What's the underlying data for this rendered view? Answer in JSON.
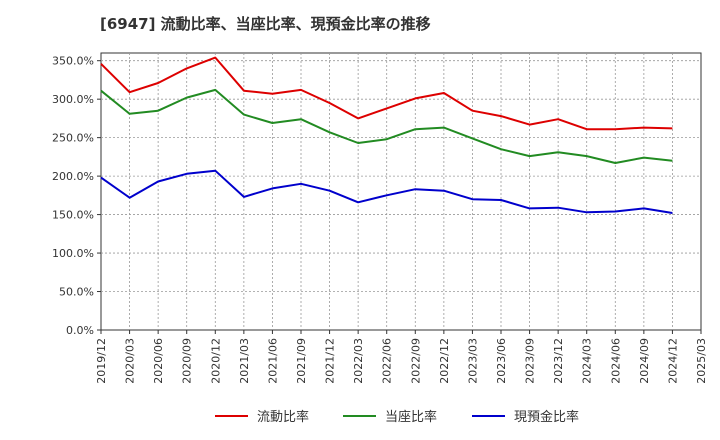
{
  "chart_data": {
    "type": "line",
    "title": "[6947]  流動比率、当座比率、現預金比率の推移",
    "xlabel": "",
    "ylabel": "",
    "ylim": [
      0,
      360
    ],
    "yticks": [
      0,
      50,
      100,
      150,
      200,
      250,
      300,
      350
    ],
    "ytick_labels": [
      "0.0%",
      "50.0%",
      "100.0%",
      "150.0%",
      "200.0%",
      "250.0%",
      "300.0%",
      "350.0%"
    ],
    "grid": true,
    "legend_position": "bottom",
    "x": [
      "2019/12",
      "2020/03",
      "2020/06",
      "2020/09",
      "2020/12",
      "2021/03",
      "2021/06",
      "2021/09",
      "2021/12",
      "2022/03",
      "2022/06",
      "2022/09",
      "2022/12",
      "2023/03",
      "2023/06",
      "2023/09",
      "2023/12",
      "2024/03",
      "2024/06",
      "2024/09",
      "2024/12",
      "2025/03"
    ],
    "series": [
      {
        "name": "流動比率",
        "color": "#dd0000",
        "values": [
          346,
          309,
          321,
          340,
          354,
          311,
          307,
          312,
          295,
          275,
          288,
          301,
          308,
          285,
          278,
          267,
          274,
          261,
          261,
          263,
          262,
          null
        ]
      },
      {
        "name": "当座比率",
        "color": "#228b22",
        "values": [
          311,
          281,
          285,
          302,
          312,
          280,
          269,
          274,
          257,
          243,
          248,
          261,
          263,
          249,
          235,
          226,
          231,
          226,
          217,
          224,
          220,
          null
        ]
      },
      {
        "name": "現預金比率",
        "color": "#0000cc",
        "values": [
          198,
          172,
          193,
          203,
          207,
          173,
          184,
          190,
          181,
          166,
          175,
          183,
          181,
          170,
          169,
          158,
          159,
          153,
          154,
          158,
          152,
          null
        ]
      }
    ]
  }
}
